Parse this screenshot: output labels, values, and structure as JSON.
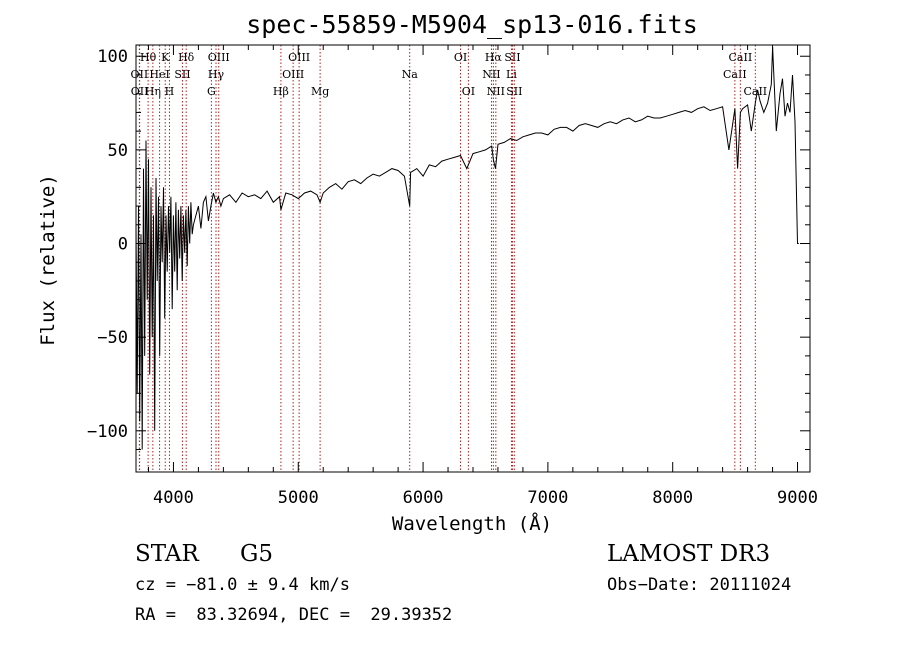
{
  "chart_data": {
    "type": "line",
    "title": "spec-55859-M5904_sp13-016.fits",
    "xlabel": "Wavelength (Å)",
    "ylabel": "Flux (relative)",
    "xlim": [
      3700,
      9100
    ],
    "ylim": [
      -122,
      106
    ],
    "xticks": [
      4000,
      5000,
      6000,
      7000,
      8000,
      9000
    ],
    "yticks": [
      -100,
      -50,
      0,
      50,
      100
    ],
    "line_color": "#000000",
    "marker_color": "#b22222",
    "series": [
      {
        "name": "flux",
        "x": [
          3700,
          3710,
          3720,
          3730,
          3740,
          3750,
          3760,
          3770,
          3780,
          3790,
          3800,
          3810,
          3820,
          3830,
          3840,
          3850,
          3860,
          3870,
          3880,
          3890,
          3900,
          3910,
          3920,
          3930,
          3940,
          3950,
          3960,
          3970,
          3980,
          3990,
          4000,
          4010,
          4020,
          4030,
          4040,
          4050,
          4060,
          4070,
          4080,
          4090,
          4100,
          4110,
          4120,
          4130,
          4140,
          4150,
          4160,
          4180,
          4200,
          4220,
          4240,
          4260,
          4280,
          4300,
          4320,
          4340,
          4360,
          4380,
          4400,
          4450,
          4500,
          4550,
          4600,
          4650,
          4700,
          4750,
          4800,
          4850,
          4861,
          4900,
          4950,
          5000,
          5050,
          5100,
          5150,
          5175,
          5200,
          5250,
          5300,
          5350,
          5400,
          5450,
          5500,
          5550,
          5600,
          5650,
          5700,
          5750,
          5800,
          5850,
          5893,
          5900,
          5950,
          6000,
          6050,
          6100,
          6150,
          6200,
          6250,
          6300,
          6350,
          6400,
          6450,
          6500,
          6550,
          6563,
          6580,
          6600,
          6650,
          6700,
          6750,
          6800,
          6850,
          6900,
          6950,
          7000,
          7050,
          7100,
          7150,
          7200,
          7250,
          7300,
          7350,
          7400,
          7450,
          7500,
          7550,
          7600,
          7650,
          7700,
          7750,
          7800,
          7850,
          7900,
          7950,
          8000,
          8050,
          8100,
          8150,
          8200,
          8250,
          8300,
          8350,
          8400,
          8450,
          8498,
          8520,
          8542,
          8560,
          8600,
          8630,
          8662,
          8680,
          8700,
          8730,
          8760,
          8790,
          8800,
          8830,
          8860,
          8880,
          8900,
          8920,
          8940,
          8960,
          8980,
          9000,
          9010
        ],
        "y": [
          10,
          -80,
          20,
          -95,
          5,
          -110,
          40,
          -60,
          55,
          -30,
          45,
          -70,
          30,
          -50,
          15,
          -100,
          35,
          -20,
          25,
          -60,
          20,
          -10,
          30,
          -40,
          15,
          -15,
          20,
          -5,
          25,
          -35,
          15,
          -15,
          22,
          -25,
          18,
          -8,
          20,
          -20,
          15,
          -5,
          18,
          -12,
          20,
          0,
          22,
          5,
          10,
          15,
          20,
          8,
          22,
          25,
          12,
          20,
          27,
          22,
          25,
          20,
          24,
          26,
          22,
          27,
          25,
          26,
          24,
          28,
          22,
          25,
          18,
          27,
          26,
          24,
          27,
          28,
          26,
          22,
          27,
          30,
          32,
          29,
          33,
          34,
          32,
          35,
          37,
          36,
          38,
          40,
          39,
          36,
          20,
          38,
          40,
          36,
          42,
          41,
          44,
          45,
          46,
          47,
          40,
          48,
          49,
          50,
          52,
          45,
          40,
          53,
          54,
          56,
          55,
          57,
          58,
          59,
          59,
          58,
          61,
          62,
          62,
          60,
          63,
          64,
          63,
          62,
          64,
          65,
          64,
          66,
          67,
          65,
          66,
          68,
          67,
          67,
          68,
          69,
          70,
          71,
          70,
          72,
          73,
          71,
          72,
          73,
          50,
          72,
          40,
          70,
          72,
          74,
          60,
          75,
          82,
          76,
          70,
          75,
          85,
          105,
          60,
          80,
          88,
          68,
          75,
          70,
          90,
          65,
          0,
          0
        ]
      }
    ],
    "line_markers": [
      {
        "label": "Hθ",
        "wavelength": 3797,
        "row": 1
      },
      {
        "label": "OII",
        "wavelength": 3727,
        "row": 2
      },
      {
        "label": "OII",
        "wavelength": 3729,
        "row": 3
      },
      {
        "label": "Hη",
        "wavelength": 3835,
        "row": 3
      },
      {
        "label": "HeI",
        "wavelength": 3889,
        "row": 2
      },
      {
        "label": "K",
        "wavelength": 3934,
        "row": 1
      },
      {
        "label": "H",
        "wavelength": 3968,
        "row": 3
      },
      {
        "label": "SII",
        "wavelength": 4072,
        "row": 2
      },
      {
        "label": "Hδ",
        "wavelength": 4102,
        "row": 1
      },
      {
        "label": "G",
        "wavelength": 4304,
        "row": 3
      },
      {
        "label": "Hγ",
        "wavelength": 4341,
        "row": 2
      },
      {
        "label": "OIII",
        "wavelength": 4363,
        "row": 1
      },
      {
        "label": "Hβ",
        "wavelength": 4861,
        "row": 3
      },
      {
        "label": "OIII",
        "wavelength": 4959,
        "row": 2
      },
      {
        "label": "OIII",
        "wavelength": 5007,
        "row": 1
      },
      {
        "label": "Mg",
        "wavelength": 5175,
        "row": 3
      },
      {
        "label": "Na",
        "wavelength": 5893,
        "row": 2
      },
      {
        "label": "OI",
        "wavelength": 6300,
        "row": 1
      },
      {
        "label": "OI",
        "wavelength": 6363,
        "row": 3
      },
      {
        "label": "NII",
        "wavelength": 6548,
        "row": 2
      },
      {
        "label": "Hα",
        "wavelength": 6563,
        "row": 1
      },
      {
        "label": "NII",
        "wavelength": 6583,
        "row": 3
      },
      {
        "label": "SII",
        "wavelength": 6716,
        "row": 1
      },
      {
        "label": "Li",
        "wavelength": 6708,
        "row": 2
      },
      {
        "label": "SII",
        "wavelength": 6731,
        "row": 3
      },
      {
        "label": "CaII",
        "wavelength": 8498,
        "row": 2
      },
      {
        "label": "CaII",
        "wavelength": 8542,
        "row": 1
      },
      {
        "label": "CaII",
        "wavelength": 8662,
        "row": 3
      }
    ]
  },
  "info": {
    "object_class": "STAR",
    "subclass": "G5",
    "survey": "LAMOST DR3",
    "redshift": "cz = −81.0 ± 9.4 km/s",
    "obs_date": "Obs−Date: 20111024",
    "coords": "RA =  83.32694, DEC =  29.39352"
  }
}
